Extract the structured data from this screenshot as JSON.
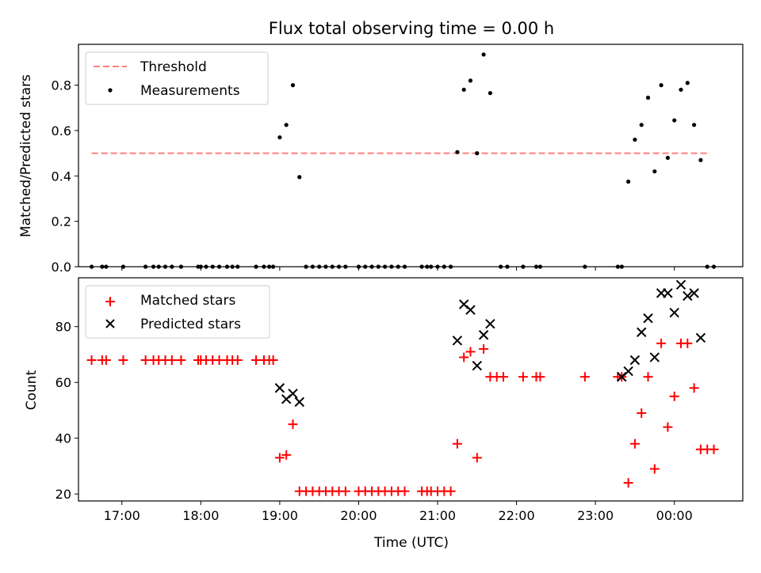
{
  "chart_data": [
    {
      "type": "scatter",
      "title": "Flux total observing time = 0.00 h",
      "ylabel": "Matched/Predicted stars",
      "xlabel": "",
      "xlim": [
        "16:27",
        "00:52"
      ],
      "ylim": [
        0,
        0.98
      ],
      "yticks": [
        "0.0",
        "0.2",
        "0.4",
        "0.6",
        "0.8"
      ],
      "grid": false,
      "legend_position": "top-left",
      "threshold": {
        "name": "Threshold",
        "value": 0.5,
        "x_start": "16:37",
        "x_end": "00:27",
        "color": "#ff7f7f",
        "style": "dashed"
      },
      "series": [
        {
          "name": "Measurements",
          "marker": "dot",
          "color": "#000000",
          "points": [
            [
              "16:37",
              0
            ],
            [
              "16:45",
              0
            ],
            [
              "16:48",
              0
            ],
            [
              "17:01",
              0
            ],
            [
              "17:18",
              0
            ],
            [
              "17:24",
              0
            ],
            [
              "17:28",
              0
            ],
            [
              "17:33",
              0
            ],
            [
              "17:38",
              0
            ],
            [
              "17:45",
              0
            ],
            [
              "17:58",
              0
            ],
            [
              "18:00",
              0
            ],
            [
              "18:04",
              0
            ],
            [
              "18:09",
              0
            ],
            [
              "18:14",
              0
            ],
            [
              "18:20",
              0
            ],
            [
              "18:24",
              0
            ],
            [
              "18:28",
              0
            ],
            [
              "18:42",
              0
            ],
            [
              "18:48",
              0
            ],
            [
              "18:52",
              0
            ],
            [
              "18:55",
              0
            ],
            [
              "19:00",
              0.57
            ],
            [
              "19:05",
              0.625
            ],
            [
              "19:10",
              0.8
            ],
            [
              "19:15",
              0.395
            ],
            [
              "19:20",
              0
            ],
            [
              "19:25",
              0
            ],
            [
              "19:30",
              0
            ],
            [
              "19:35",
              0
            ],
            [
              "19:40",
              0
            ],
            [
              "19:45",
              0
            ],
            [
              "19:50",
              0
            ],
            [
              "20:00",
              0
            ],
            [
              "20:05",
              0
            ],
            [
              "20:10",
              0
            ],
            [
              "20:15",
              0
            ],
            [
              "20:20",
              0
            ],
            [
              "20:25",
              0
            ],
            [
              "20:30",
              0
            ],
            [
              "20:35",
              0
            ],
            [
              "20:48",
              0
            ],
            [
              "20:52",
              0
            ],
            [
              "20:55",
              0
            ],
            [
              "21:00",
              0
            ],
            [
              "21:05",
              0
            ],
            [
              "21:10",
              0
            ],
            [
              "21:15",
              0.505
            ],
            [
              "21:20",
              0.78
            ],
            [
              "21:25",
              0.82
            ],
            [
              "21:30",
              0.5
            ],
            [
              "21:35",
              0.935
            ],
            [
              "21:40",
              0.765
            ],
            [
              "21:48",
              0
            ],
            [
              "21:53",
              0
            ],
            [
              "22:05",
              0
            ],
            [
              "22:15",
              0
            ],
            [
              "22:18",
              0
            ],
            [
              "22:52",
              0
            ],
            [
              "23:17",
              0
            ],
            [
              "23:20",
              0
            ],
            [
              "23:25",
              0.375
            ],
            [
              "23:30",
              0.56
            ],
            [
              "23:35",
              0.625
            ],
            [
              "23:40",
              0.745
            ],
            [
              "23:45",
              0.42
            ],
            [
              "23:50",
              0.8
            ],
            [
              "23:55",
              0.48
            ],
            [
              "24:00",
              0.645
            ],
            [
              "24:05",
              0.78
            ],
            [
              "24:10",
              0.81
            ],
            [
              "24:15",
              0.625
            ],
            [
              "24:20",
              0.47
            ],
            [
              "24:25",
              0
            ],
            [
              "24:30",
              0
            ]
          ]
        }
      ]
    },
    {
      "type": "scatter",
      "title": "",
      "ylabel": "Count",
      "xlabel": "Time (UTC)",
      "xticks": [
        "17:00",
        "18:00",
        "19:00",
        "20:00",
        "21:00",
        "22:00",
        "23:00",
        "00:00"
      ],
      "xlim": [
        "16:27",
        "00:52"
      ],
      "ylim": [
        17.5,
        97.5
      ],
      "yticks": [
        "20",
        "40",
        "60",
        "80"
      ],
      "grid": false,
      "legend_position": "top-left",
      "series": [
        {
          "name": "Matched stars",
          "marker": "plus",
          "color": "#ff0000",
          "points": [
            [
              "16:37",
              68
            ],
            [
              "16:45",
              68
            ],
            [
              "16:48",
              68
            ],
            [
              "17:01",
              68
            ],
            [
              "17:18",
              68
            ],
            [
              "17:24",
              68
            ],
            [
              "17:28",
              68
            ],
            [
              "17:33",
              68
            ],
            [
              "17:38",
              68
            ],
            [
              "17:45",
              68
            ],
            [
              "17:58",
              68
            ],
            [
              "18:00",
              68
            ],
            [
              "18:04",
              68
            ],
            [
              "18:09",
              68
            ],
            [
              "18:14",
              68
            ],
            [
              "18:20",
              68
            ],
            [
              "18:24",
              68
            ],
            [
              "18:28",
              68
            ],
            [
              "18:42",
              68
            ],
            [
              "18:48",
              68
            ],
            [
              "18:52",
              68
            ],
            [
              "18:55",
              68
            ],
            [
              "19:00",
              33
            ],
            [
              "19:05",
              34
            ],
            [
              "19:10",
              45
            ],
            [
              "19:15",
              21
            ],
            [
              "19:20",
              21
            ],
            [
              "19:25",
              21
            ],
            [
              "19:30",
              21
            ],
            [
              "19:35",
              21
            ],
            [
              "19:40",
              21
            ],
            [
              "19:45",
              21
            ],
            [
              "19:50",
              21
            ],
            [
              "20:00",
              21
            ],
            [
              "20:05",
              21
            ],
            [
              "20:10",
              21
            ],
            [
              "20:15",
              21
            ],
            [
              "20:20",
              21
            ],
            [
              "20:25",
              21
            ],
            [
              "20:30",
              21
            ],
            [
              "20:35",
              21
            ],
            [
              "20:48",
              21
            ],
            [
              "20:52",
              21
            ],
            [
              "20:55",
              21
            ],
            [
              "21:00",
              21
            ],
            [
              "21:05",
              21
            ],
            [
              "21:10",
              21
            ],
            [
              "21:15",
              38
            ],
            [
              "21:20",
              69
            ],
            [
              "21:25",
              71
            ],
            [
              "21:30",
              33
            ],
            [
              "21:35",
              72
            ],
            [
              "21:40",
              62
            ],
            [
              "21:45",
              62
            ],
            [
              "21:50",
              62
            ],
            [
              "22:05",
              62
            ],
            [
              "22:15",
              62
            ],
            [
              "22:18",
              62
            ],
            [
              "22:52",
              62
            ],
            [
              "23:17",
              62
            ],
            [
              "23:20",
              62
            ],
            [
              "23:25",
              24
            ],
            [
              "23:30",
              38
            ],
            [
              "23:35",
              49
            ],
            [
              "23:40",
              62
            ],
            [
              "23:45",
              29
            ],
            [
              "23:50",
              74
            ],
            [
              "23:55",
              44
            ],
            [
              "24:00",
              55
            ],
            [
              "24:05",
              74
            ],
            [
              "24:10",
              74
            ],
            [
              "24:15",
              58
            ],
            [
              "24:20",
              36
            ],
            [
              "24:25",
              36
            ],
            [
              "24:30",
              36
            ]
          ]
        },
        {
          "name": "Predicted stars",
          "marker": "x",
          "color": "#000000",
          "points": [
            [
              "19:00",
              58
            ],
            [
              "19:05",
              54
            ],
            [
              "19:10",
              56
            ],
            [
              "19:15",
              53
            ],
            [
              "21:15",
              75
            ],
            [
              "21:20",
              88
            ],
            [
              "21:25",
              86
            ],
            [
              "21:30",
              66
            ],
            [
              "21:35",
              77
            ],
            [
              "21:40",
              81
            ],
            [
              "23:20",
              62
            ],
            [
              "23:25",
              64
            ],
            [
              "23:30",
              68
            ],
            [
              "23:35",
              78
            ],
            [
              "23:40",
              83
            ],
            [
              "23:45",
              69
            ],
            [
              "23:50",
              92
            ],
            [
              "23:55",
              92
            ],
            [
              "24:00",
              85
            ],
            [
              "24:05",
              95
            ],
            [
              "24:10",
              91
            ],
            [
              "24:15",
              92
            ],
            [
              "24:20",
              76
            ]
          ]
        }
      ]
    }
  ]
}
